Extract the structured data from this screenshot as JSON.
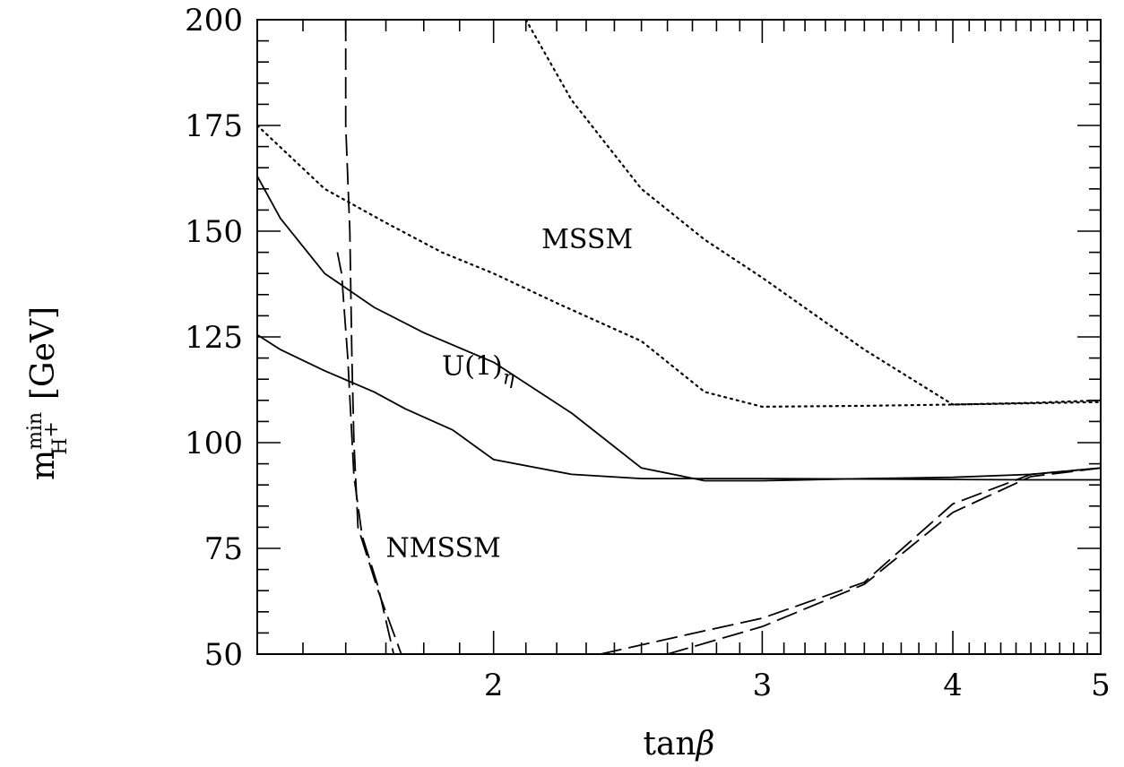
{
  "chart_data": {
    "type": "line",
    "title": "",
    "xlabel": {
      "base": "tan",
      "symbol": "β"
    },
    "ylabel": {
      "base": "m",
      "superscript": "min",
      "subscript": "H",
      "subscript_sup": "+",
      "unit": "[GeV]"
    },
    "x_scale": "log",
    "xlim": [
      1.4,
      5
    ],
    "ylim": [
      50,
      200
    ],
    "x_tick_labels": [
      "2",
      "3",
      "4",
      "5"
    ],
    "x_ticks": [
      2,
      3,
      4,
      5
    ],
    "y_tick_labels": [
      "50",
      "75",
      "100",
      "125",
      "150",
      "175",
      "200"
    ],
    "y_ticks": [
      50,
      75,
      100,
      125,
      150,
      175,
      200
    ],
    "grid": false,
    "legend": "none",
    "annotations": [
      {
        "text": "MSSM",
        "x": 2.15,
        "y": 146
      },
      {
        "text": "U(1)",
        "subscript": "η",
        "x": 1.85,
        "y": 116
      },
      {
        "text": "NMSSM",
        "x": 1.7,
        "y": 73
      }
    ],
    "series": [
      {
        "style": "dotted",
        "x": [
          1.4,
          1.55,
          1.7,
          1.85,
          2.0,
          2.2,
          2.5,
          2.75,
          3.0,
          3.5,
          4.0,
          4.5,
          5.0
        ],
        "y": [
          175,
          160,
          152,
          145,
          140,
          133,
          124,
          112,
          108.5,
          108.7,
          109,
          109.4,
          110
        ]
      },
      {
        "style": "dotted",
        "x": [
          2.1,
          2.25,
          2.5,
          2.75,
          3.0,
          3.5,
          4.0,
          4.5,
          5.0
        ],
        "y": [
          200,
          181,
          160,
          148,
          139,
          122,
          109,
          109.3,
          109.6
        ]
      },
      {
        "style": "solid",
        "x": [
          1.4,
          1.45,
          1.55,
          1.67,
          1.8,
          2.0,
          2.25,
          2.5,
          2.75,
          3.0,
          3.5,
          4.0,
          4.5,
          5.0
        ],
        "y": [
          163,
          153,
          140,
          132,
          126,
          119,
          107,
          94,
          91,
          91,
          91.5,
          91.8,
          92.5,
          94
        ]
      },
      {
        "style": "solid",
        "x": [
          1.4,
          1.45,
          1.55,
          1.67,
          1.75,
          1.88,
          2.0,
          2.25,
          2.5,
          2.75,
          3.0,
          3.5,
          4.0,
          4.5,
          5.0
        ],
        "y": [
          125.5,
          122,
          117,
          112,
          108,
          103,
          96,
          92.5,
          91.5,
          91.5,
          91.5,
          91.4,
          91.3,
          91.2,
          91.2
        ]
      },
      {
        "style": "dashed",
        "x": [
          1.6,
          1.6,
          1.61,
          1.615,
          1.62,
          1.63,
          1.68,
          1.74
        ],
        "y": [
          200,
          175,
          150,
          120,
          100,
          80,
          65,
          50
        ]
      },
      {
        "style": "dashed",
        "x": [
          1.58,
          1.59,
          1.605,
          1.62,
          1.64,
          1.68,
          1.72
        ],
        "y": [
          145,
          140,
          120,
          92,
          78,
          66,
          50
        ]
      },
      {
        "style": "dashed",
        "x": [
          2.35,
          2.75,
          3.0,
          3.5,
          4.0,
          4.5,
          5.0
        ],
        "y": [
          50,
          55.5,
          58.5,
          67,
          85.5,
          92.5,
          94
        ]
      },
      {
        "style": "dashed",
        "x": [
          2.6,
          3.0,
          3.5,
          4.0,
          4.5,
          5.0
        ],
        "y": [
          50,
          56.5,
          66.5,
          83.5,
          92,
          94
        ]
      }
    ]
  }
}
